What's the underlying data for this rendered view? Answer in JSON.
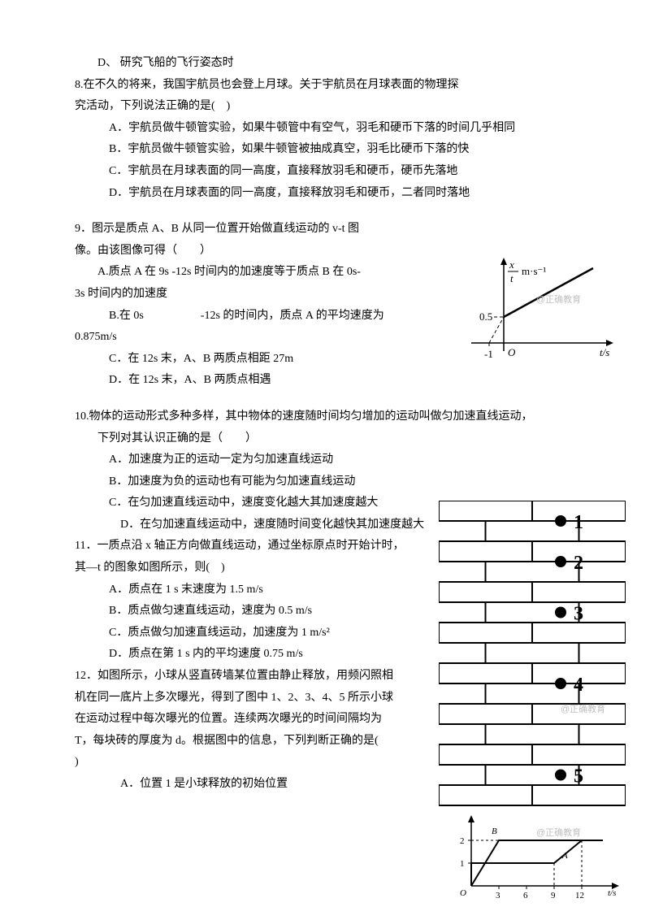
{
  "q7": {
    "D": "D、 研究飞船的飞行姿态时"
  },
  "q8": {
    "stem1": "8.在不久的将来，我国宇航员也会登上月球。关于宇航员在月球表面的物理探",
    "stem2": "究活动，下列说法正确的是(　)",
    "A": "A．宇航员做牛顿管实验，如果牛顿管中有空气，羽毛和硬币下落的时间几乎相同",
    "B": "B．宇航员做牛顿管实验，如果牛顿管被抽成真空，羽毛比硬币下落的快",
    "C": "C．宇航员在月球表面的同一高度，直接释放羽毛和硬币，硬币先落地",
    "D": "D．宇航员在月球表面的同一高度，直接释放羽毛和硬币，二者同时落地"
  },
  "q9": {
    "stem1": "9．图示是质点 A、B 从同一位置开始做直线运动的 v-t 图",
    "stem2": "像。由该图像可得（　　）",
    "A1": "A.质点 A 在 9s -12s 时间内的加速度等于质点 B 在 0s-",
    "A2": "3s 时间内的加速度",
    "B1": "B.在 0s　　　　　-12s 的时间内，质点 A 的平均速度为",
    "B2": "0.875m/s",
    "C": "C．在 12s 末，A、B 两质点相距 27m",
    "D": "D．在 12s 末，A、B 两质点相遇"
  },
  "q10": {
    "stem1": "10.物体的运动形式多种多样，其中物体的速度随时间均匀增加的运动叫做匀加速直线运动，",
    "stem2": "下列对其认识正确的是（　　）",
    "A": "A．加速度为正的运动一定为匀加速直线运动",
    "B": "B．加速度为负的运动也有可能为匀加速直线运动",
    "C": "C．在匀加速直线运动中，速度变化越大其加速度越大",
    "D": "D．在匀加速直线运动中，速度随时间变化越快其加速度越大"
  },
  "q11": {
    "stem1": "11．一质点沿 x 轴正方向做直线运动，通过坐标原点时开始计时，",
    "stem2": "其—t 的图象如图所示，则(　)",
    "A": "A．质点在 1 s 末速度为 1.5 m/s",
    "B": "B．质点做匀速直线运动，速度为 0.5 m/s",
    "C": "C．质点做匀加速直线运动，加速度为 1 m/s²",
    "D": "D．质点在第 1 s 内的平均速度 0.75 m/s"
  },
  "q12": {
    "stem1": "12．如图所示，小球从竖直砖墙某位置由静止释放，用频闪照相",
    "stem2": "机在同一底片上多次曝光，得到了图中 1、2、3、4、5 所示小球",
    "stem3": "在运动过程中每次曝光的位置。连续两次曝光的时间间隔均为",
    "stem4": "T，每块砖的厚度为 d。根据图中的信息，下列判断正确的是(　",
    "stem5": ")",
    "A": "A．位置 1 是小球释放的初始位置"
  },
  "fig1": {
    "type": "line",
    "ylabel_top": "x",
    "ylabel_bot": "t",
    "ylabel_unit": "m·s⁻¹",
    "xlabel": "t/s",
    "yticks": [
      "0.5"
    ],
    "xticks": [
      "-1",
      "O"
    ],
    "line_color": "#000000",
    "background": "#ffffff",
    "line_width": 2,
    "watermark": "@正确教育"
  },
  "fig2": {
    "type": "infographic",
    "brick_rows": 15,
    "brick_border": "#000000",
    "brick_fill": "#ffffff",
    "dot_color": "#000000",
    "labels": [
      "1",
      "2",
      "3",
      "4",
      "5"
    ],
    "watermark": "@正确教育"
  },
  "fig3": {
    "type": "line",
    "xticks": [
      "3",
      "6",
      "9",
      "12"
    ],
    "yticks": [
      "1",
      "2"
    ],
    "xlabel": "t/s",
    "labels": [
      "A",
      "B"
    ],
    "line_color": "#000000",
    "dash": "3,3",
    "watermark": "@正确教育"
  },
  "colors": {
    "text": "#000000",
    "background": "#ffffff",
    "watermark": "#bfbfbf"
  }
}
